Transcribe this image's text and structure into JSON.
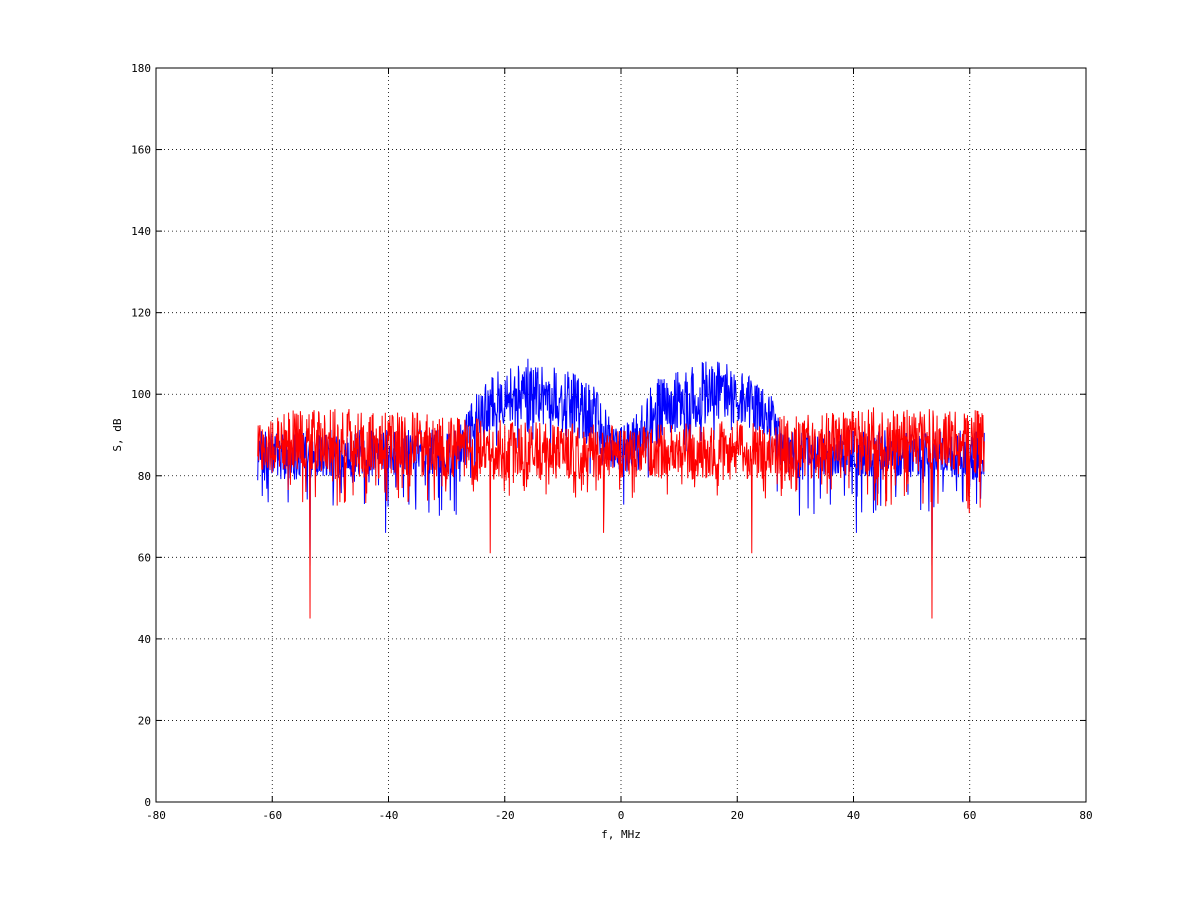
{
  "chart_data": {
    "type": "line",
    "title": "",
    "xlabel": "f, MHz",
    "ylabel": "S, dB",
    "xlim": [
      -80,
      80
    ],
    "ylim": [
      0,
      180
    ],
    "xticks": [
      -80,
      -60,
      -40,
      -20,
      0,
      20,
      40,
      60,
      80
    ],
    "yticks": [
      0,
      20,
      40,
      60,
      80,
      100,
      120,
      140,
      160,
      180
    ],
    "grid": true,
    "legend": "none",
    "series": [
      {
        "color": "#0000ff",
        "x_range": [
          -62.5,
          62.5
        ],
        "baseline_envelope": {
          "x": [
            -62.5,
            -28,
            -26,
            -20,
            -15,
            -10,
            -5,
            -2,
            0,
            2,
            5,
            10,
            15,
            20,
            26,
            28,
            62.5
          ],
          "mean": [
            85,
            86,
            94,
            100,
            101,
            98,
            95,
            88,
            86,
            88,
            95,
            98,
            101,
            100,
            94,
            86,
            85
          ],
          "max": [
            92,
            92,
            100,
            108,
            110,
            107,
            104,
            95,
            93,
            95,
            104,
            107,
            110,
            108,
            100,
            92,
            92
          ],
          "min": [
            70,
            70,
            75,
            85,
            88,
            85,
            80,
            74,
            72,
            74,
            80,
            85,
            88,
            85,
            75,
            70,
            70
          ]
        },
        "notable_points": [
          {
            "x": -53.5,
            "y": 58
          },
          {
            "x": -40.5,
            "y": 66
          },
          {
            "x": 40.5,
            "y": 66
          },
          {
            "x": 53.5,
            "y": 58
          }
        ]
      },
      {
        "color": "#ff0000",
        "x_range": [
          -62.5,
          62.5
        ],
        "baseline_envelope": {
          "x": [
            -62.5,
            -55,
            -45,
            -30,
            -15,
            0,
            15,
            30,
            45,
            55,
            62.5
          ],
          "mean": [
            88,
            89,
            88,
            87,
            86,
            86,
            86,
            87,
            88,
            89,
            88
          ],
          "max": [
            97,
            97,
            98,
            96,
            94,
            93,
            94,
            96,
            98,
            97,
            97
          ],
          "min": [
            70,
            72,
            72,
            74,
            75,
            74,
            75,
            74,
            72,
            72,
            70
          ]
        },
        "notable_points": [
          {
            "x": -53.5,
            "y": 45
          },
          {
            "x": -22.5,
            "y": 61
          },
          {
            "x": -3,
            "y": 66
          },
          {
            "x": 22.5,
            "y": 61
          },
          {
            "x": 53.5,
            "y": 45
          }
        ]
      }
    ]
  }
}
